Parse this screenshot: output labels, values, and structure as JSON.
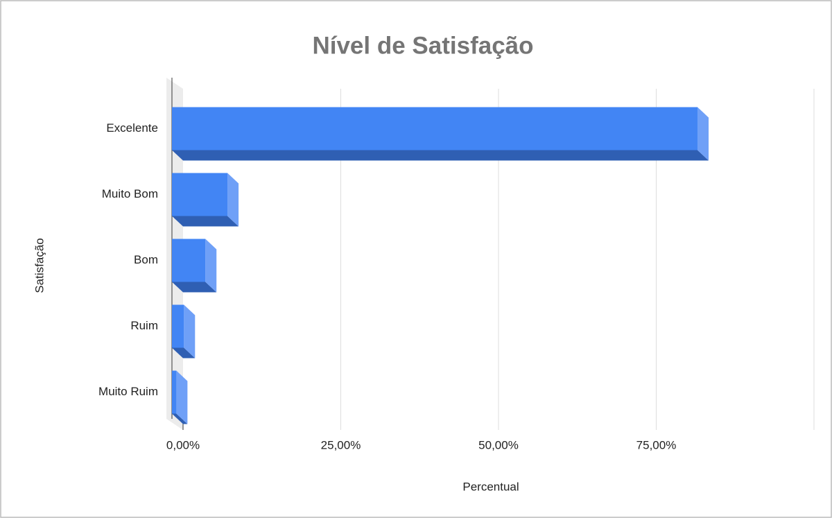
{
  "chart_data": {
    "type": "bar3d_horizontal",
    "title": "Nível de Satisfação",
    "x_label": "Percentual",
    "y_label": "Satisfação",
    "categories": [
      "Excelente",
      "Muito Bom",
      "Bom",
      "Ruim",
      "Muito Ruim"
    ],
    "values": [
      83.3,
      8.8,
      5.3,
      1.9,
      0.7
    ],
    "color": "#4285f4",
    "xlim": [
      0,
      100
    ],
    "xticks": [
      {
        "value": 0,
        "label": "0,00%"
      },
      {
        "value": 25,
        "label": "25,00%"
      },
      {
        "value": 50,
        "label": "50,00%"
      },
      {
        "value": 75,
        "label": "75,00%"
      }
    ],
    "grid": true
  }
}
